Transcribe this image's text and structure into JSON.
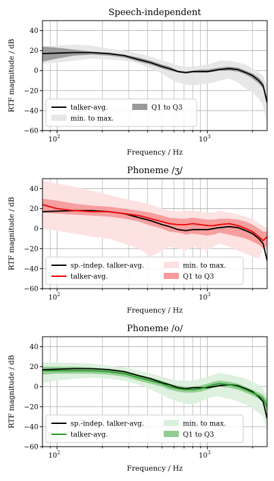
{
  "chart_data": [
    {
      "type": "line",
      "title": "Speech-independent",
      "xlabel": "Frequency / Hz",
      "ylabel": "RTF magnitude / dB",
      "xscale": "log",
      "xlim": [
        80,
        2500
      ],
      "ylim": [
        -60,
        50
      ],
      "yticks": [
        "−60",
        "−40",
        "−20",
        "0",
        "20",
        "40"
      ],
      "xticks": [
        {
          "base": "10",
          "exp": "2"
        },
        {
          "base": "10",
          "exp": "3"
        }
      ],
      "grid": true,
      "legend_position": "lower-left",
      "legend_columns": 2,
      "legend": [
        {
          "label": "talker-avg.",
          "kind": "line",
          "color": "#000000"
        },
        {
          "label": "Q1 to Q3",
          "kind": "patch",
          "color": "#999999"
        },
        {
          "label": "min. to max.",
          "kind": "patch",
          "color": "#e6e6e6"
        }
      ],
      "series": [
        {
          "name": "talker-avg.",
          "color": "#000000",
          "x": [
            80,
            100,
            130,
            170,
            220,
            280,
            350,
            420,
            500,
            560,
            640,
            720,
            800,
            900,
            1000,
            1100,
            1200,
            1400,
            1600,
            1800,
            2000,
            2200,
            2350,
            2500
          ],
          "y": [
            17,
            17.5,
            18,
            18,
            17,
            15,
            11,
            8,
            4,
            2,
            -1,
            -2,
            -1,
            -1,
            -1,
            0,
            1,
            2,
            1,
            -2,
            -5,
            -10,
            -15,
            -32
          ],
          "min": [
            7,
            8,
            10,
            12,
            11,
            10,
            7,
            2,
            -3,
            -8,
            -12,
            -14,
            -15,
            -14,
            -13,
            -12,
            -10,
            -8,
            -12,
            -18,
            -22,
            -28,
            -35,
            -55
          ],
          "max": [
            24,
            25,
            26,
            25,
            22,
            20,
            17,
            14,
            10,
            8,
            5,
            4,
            4,
            5,
            6,
            8,
            10,
            10,
            8,
            6,
            2,
            -2,
            -5,
            -15
          ],
          "q1": [
            9,
            12,
            15,
            16,
            15,
            13,
            9,
            6,
            2,
            0,
            -2,
            -3,
            -2,
            -2,
            -2,
            -1,
            0,
            0,
            -1,
            -4,
            -8,
            -13,
            -18,
            -35
          ],
          "q3": [
            24,
            23,
            21,
            19,
            18,
            16,
            13,
            10,
            6,
            4,
            0,
            -1,
            0,
            1,
            1,
            2,
            3,
            4,
            3,
            0,
            -3,
            -7,
            -12,
            -28
          ]
        }
      ]
    },
    {
      "type": "line",
      "title": "Phoneme /ʒ/",
      "xlabel": "Frequency / Hz",
      "ylabel": "RTF magnitude / dB",
      "xscale": "log",
      "xlim": [
        80,
        2500
      ],
      "ylim": [
        -60,
        50
      ],
      "yticks": [
        "−60",
        "−40",
        "−20",
        "0",
        "20",
        "40"
      ],
      "xticks": [
        {
          "base": "10",
          "exp": "2"
        },
        {
          "base": "10",
          "exp": "3"
        }
      ],
      "grid": true,
      "legend_position": "lower-left",
      "legend_columns": 2,
      "legend": [
        {
          "label": "sp.-indep. talker-avg.",
          "kind": "line",
          "color": "#000000"
        },
        {
          "label": "min. to max.",
          "kind": "patch",
          "color": "#fde0e0"
        },
        {
          "label": "talker-avg.",
          "kind": "line",
          "color": "#ee0000"
        },
        {
          "label": "Q1 to Q3",
          "kind": "patch",
          "color": "#f79a9a"
        }
      ],
      "series": [
        {
          "name": "sp.-indep. talker-avg.",
          "color": "#000000",
          "x": [
            80,
            100,
            130,
            170,
            220,
            280,
            350,
            420,
            500,
            560,
            640,
            720,
            800,
            900,
            1000,
            1100,
            1200,
            1400,
            1600,
            1800,
            2000,
            2200,
            2350,
            2500
          ],
          "y": [
            17,
            17.5,
            18,
            18,
            17,
            15,
            11,
            8,
            4,
            2,
            -1,
            -2,
            -1,
            -1,
            -1,
            0,
            1,
            2,
            1,
            -2,
            -5,
            -10,
            -15,
            -32
          ]
        },
        {
          "name": "talker-avg.",
          "color": "#ee0000",
          "x": [
            80,
            100,
            130,
            170,
            220,
            280,
            350,
            420,
            500,
            560,
            640,
            720,
            800,
            900,
            1000,
            1100,
            1200,
            1400,
            1600,
            1800,
            2000,
            2200,
            2350,
            2500
          ],
          "y": [
            24,
            20,
            18,
            17,
            17,
            15,
            13,
            10,
            7,
            5,
            4,
            4,
            5,
            4,
            3,
            3,
            4,
            5,
            3,
            0,
            -3,
            -8,
            -12,
            -8
          ],
          "min": [
            0,
            -2,
            -5,
            -8,
            -10,
            -15,
            -20,
            -28,
            -22,
            -18,
            -20,
            -22,
            -18,
            -20,
            -22,
            -18,
            -15,
            -18,
            -22,
            -25,
            -28,
            -30,
            -20,
            -15
          ],
          "max": [
            48,
            45,
            42,
            38,
            34,
            30,
            27,
            24,
            20,
            18,
            17,
            18,
            18,
            17,
            16,
            16,
            18,
            16,
            14,
            12,
            10,
            5,
            3,
            0
          ],
          "q1": [
            16,
            15,
            14,
            13,
            12,
            10,
            7,
            3,
            0,
            -3,
            -4,
            -6,
            -5,
            -6,
            -7,
            -6,
            -4,
            -6,
            -8,
            -10,
            -13,
            -16,
            -20,
            -18
          ],
          "q3": [
            30,
            28,
            25,
            23,
            22,
            20,
            18,
            16,
            13,
            11,
            10,
            10,
            11,
            10,
            9,
            9,
            10,
            10,
            9,
            7,
            4,
            0,
            -3,
            -3
          ]
        }
      ]
    },
    {
      "type": "line",
      "title": "Phoneme /o/",
      "xlabel": "Frequency / Hz",
      "ylabel": "RTF magnitude / dB",
      "xscale": "log",
      "xlim": [
        80,
        2500
      ],
      "ylim": [
        -60,
        50
      ],
      "yticks": [
        "−60",
        "−40",
        "−20",
        "0",
        "20",
        "40"
      ],
      "xticks": [
        {
          "base": "10",
          "exp": "2"
        },
        {
          "base": "10",
          "exp": "3"
        }
      ],
      "grid": true,
      "legend_position": "lower-left",
      "legend_columns": 2,
      "legend": [
        {
          "label": "sp.-indep. talker-avg.",
          "kind": "line",
          "color": "#000000"
        },
        {
          "label": "min. to max.",
          "kind": "patch",
          "color": "#dcefdc"
        },
        {
          "label": "talker-avg.",
          "kind": "line",
          "color": "#229922"
        },
        {
          "label": "Q1 to Q3",
          "kind": "patch",
          "color": "#90cc90"
        }
      ],
      "series": [
        {
          "name": "sp.-indep. talker-avg.",
          "color": "#000000",
          "x": [
            80,
            100,
            130,
            170,
            220,
            280,
            350,
            420,
            500,
            560,
            640,
            720,
            800,
            900,
            1000,
            1100,
            1200,
            1400,
            1600,
            1800,
            2000,
            2200,
            2350,
            2500
          ],
          "y": [
            17,
            17.5,
            18,
            18,
            17,
            15,
            11,
            8,
            4,
            2,
            -1,
            -2,
            -1,
            -1,
            -1,
            0,
            1,
            2,
            1,
            -2,
            -5,
            -10,
            -15,
            -32
          ]
        },
        {
          "name": "talker-avg.",
          "color": "#229922",
          "x": [
            80,
            100,
            130,
            170,
            220,
            280,
            350,
            420,
            500,
            560,
            640,
            720,
            800,
            900,
            1000,
            1100,
            1200,
            1400,
            1600,
            1800,
            2000,
            2200,
            2350,
            2500
          ],
          "y": [
            16,
            16,
            16,
            16,
            15,
            13,
            9,
            6,
            3,
            0,
            -2,
            -3,
            -3,
            -2,
            0,
            2,
            3,
            2,
            0,
            -3,
            -6,
            -9,
            -12,
            -20
          ],
          "min": [
            4,
            6,
            8,
            9,
            8,
            6,
            2,
            -3,
            -8,
            -12,
            -15,
            -17,
            -18,
            -15,
            -12,
            -10,
            -10,
            -12,
            -15,
            -18,
            -22,
            -26,
            -30,
            -45
          ],
          "max": [
            24,
            24,
            24,
            23,
            21,
            19,
            16,
            13,
            10,
            8,
            6,
            6,
            6,
            8,
            10,
            12,
            14,
            12,
            10,
            8,
            5,
            2,
            -2,
            -8
          ],
          "q1": [
            12,
            13,
            13,
            13,
            12,
            10,
            6,
            3,
            0,
            -3,
            -5,
            -6,
            -6,
            -5,
            -3,
            -1,
            0,
            -1,
            -3,
            -6,
            -9,
            -12,
            -16,
            -26
          ],
          "q3": [
            20,
            20,
            20,
            19,
            18,
            16,
            12,
            9,
            6,
            3,
            1,
            0,
            0,
            1,
            3,
            5,
            6,
            5,
            3,
            0,
            -3,
            -6,
            -8,
            -14
          ]
        }
      ]
    }
  ]
}
